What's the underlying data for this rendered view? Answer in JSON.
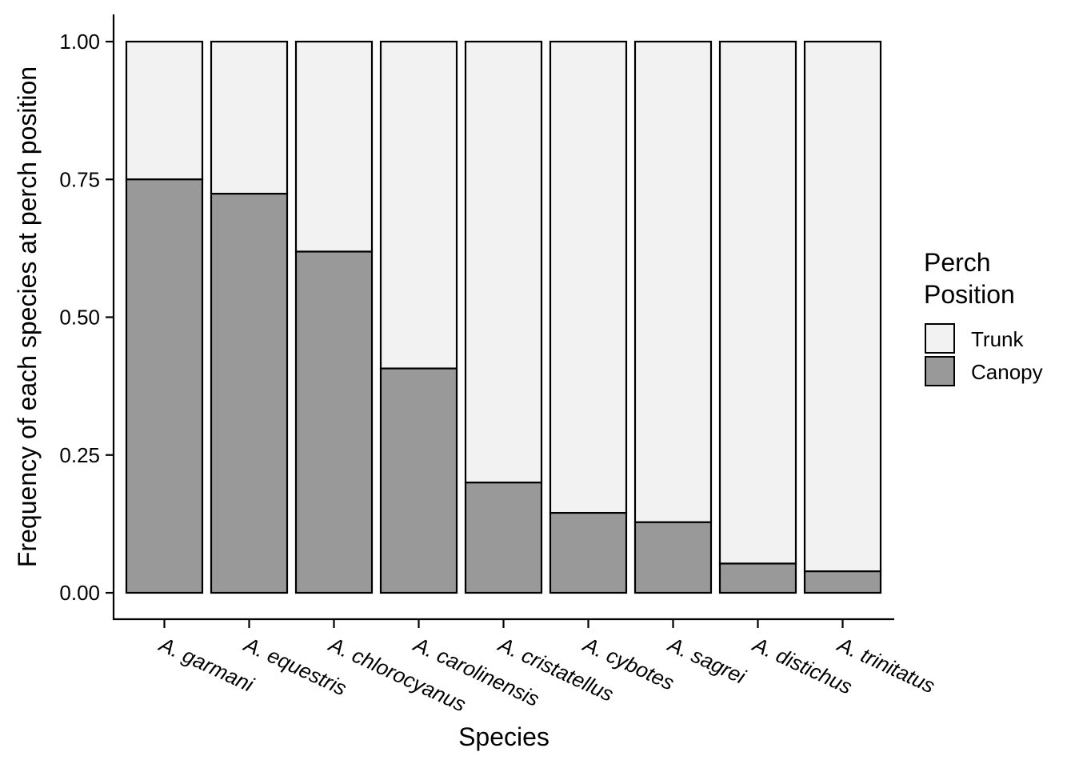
{
  "chart_data": {
    "type": "bar",
    "stacked": true,
    "categories": [
      "A. garmani",
      "A. equestris",
      "A. chlorocyanus",
      "A. carolinensis",
      "A. cristatellus",
      "A. cybotes",
      "A. sagrei",
      "A. distichus",
      "A. trinitatus"
    ],
    "series": [
      {
        "name": "Canopy",
        "color": "#999999",
        "values": [
          0.75,
          0.724,
          0.619,
          0.407,
          0.2,
          0.145,
          0.128,
          0.053,
          0.039
        ]
      },
      {
        "name": "Trunk",
        "color": "#f2f2f2",
        "values": [
          0.25,
          0.276,
          0.381,
          0.593,
          0.8,
          0.855,
          0.872,
          0.947,
          0.961
        ]
      }
    ],
    "title": "",
    "xlabel": "Species",
    "ylabel": "Frequency of each species at perch position",
    "ylim": [
      0,
      1
    ],
    "yticks": [
      "0.00",
      "0.25",
      "0.50",
      "0.75",
      "1.00"
    ],
    "grid": false,
    "legend": {
      "title_line1": "Perch",
      "title_line2": "Position",
      "placement": "right",
      "items": [
        {
          "label": "Trunk",
          "color": "#f2f2f2"
        },
        {
          "label": "Canopy",
          "color": "#999999"
        }
      ]
    }
  }
}
